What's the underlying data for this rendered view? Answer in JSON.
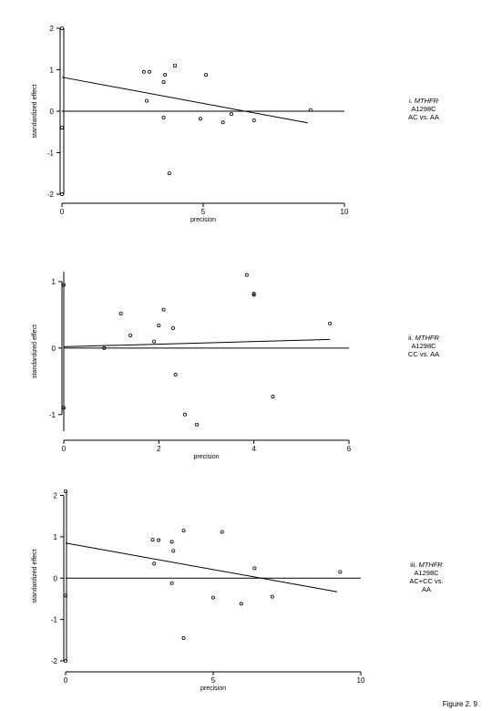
{
  "figure_label": "Figure 2. 9",
  "chart_data": [
    {
      "type": "scatter",
      "xlabel": "precision",
      "ylabel": "standardized effect",
      "xlim": [
        0,
        10
      ],
      "ylim": [
        -2,
        2
      ],
      "xticks": [
        "0",
        "5",
        "10"
      ],
      "yticks": [
        "2",
        "1",
        "0",
        "-1",
        "-2"
      ],
      "caption": [
        "i. MTHFR",
        "A1298C",
        "AC vs. AA"
      ],
      "points": [
        {
          "x": 0,
          "y": 2.0
        },
        {
          "x": 0,
          "y": -0.4
        },
        {
          "x": 0,
          "y": -2.0
        },
        {
          "x": 2.9,
          "y": 0.95
        },
        {
          "x": 3.1,
          "y": 0.95
        },
        {
          "x": 3.0,
          "y": 0.25
        },
        {
          "x": 3.6,
          "y": 0.7
        },
        {
          "x": 3.65,
          "y": 0.88
        },
        {
          "x": 3.6,
          "y": -0.15
        },
        {
          "x": 3.8,
          "y": -1.5
        },
        {
          "x": 4.0,
          "y": 1.1
        },
        {
          "x": 4.9,
          "y": -0.18
        },
        {
          "x": 5.1,
          "y": 0.88
        },
        {
          "x": 5.7,
          "y": -0.27
        },
        {
          "x": 6.0,
          "y": -0.07
        },
        {
          "x": 6.8,
          "y": -0.22
        },
        {
          "x": 8.8,
          "y": 0.03
        }
      ],
      "zero_line": {
        "x": [
          0,
          10
        ],
        "y": [
          0,
          0
        ]
      },
      "fit_line": {
        "x": [
          0,
          8.7
        ],
        "y": [
          0.82,
          -0.28
        ]
      }
    },
    {
      "type": "scatter",
      "xlabel": "precision",
      "ylabel": "standardized effect",
      "xlim": [
        0,
        6
      ],
      "ylim": [
        -1.25,
        1.15
      ],
      "xticks": [
        "0",
        "2",
        "4",
        "6"
      ],
      "yticks": [
        "1",
        "0",
        "-1"
      ],
      "caption": [
        "ii. MTHFR",
        "A1298C",
        "CC vs. AA"
      ],
      "points": [
        {
          "x": 0,
          "y": 0.95
        },
        {
          "x": 0,
          "y": -0.9
        },
        {
          "x": 0.85,
          "y": 0.0
        },
        {
          "x": 1.2,
          "y": 0.52
        },
        {
          "x": 1.4,
          "y": 0.19
        },
        {
          "x": 1.9,
          "y": 0.1
        },
        {
          "x": 2.0,
          "y": 0.34
        },
        {
          "x": 2.1,
          "y": 0.58
        },
        {
          "x": 2.3,
          "y": 0.3
        },
        {
          "x": 2.35,
          "y": -0.4
        },
        {
          "x": 2.55,
          "y": -1.0
        },
        {
          "x": 2.8,
          "y": -1.15
        },
        {
          "x": 3.85,
          "y": 1.1
        },
        {
          "x": 4.0,
          "y": 0.82
        },
        {
          "x": 4.0,
          "y": 0.8
        },
        {
          "x": 4.4,
          "y": -0.73
        },
        {
          "x": 5.6,
          "y": 0.37
        }
      ],
      "zero_line": {
        "x": [
          0,
          6
        ],
        "y": [
          0,
          0
        ]
      },
      "fit_line": {
        "x": [
          0,
          5.6
        ],
        "y": [
          0.02,
          0.13
        ]
      }
    },
    {
      "type": "scatter",
      "xlabel": "precision",
      "ylabel": "standardized effect",
      "xlim": [
        0,
        10
      ],
      "ylim": [
        -2,
        2.1
      ],
      "xticks": [
        "0",
        "5",
        "10"
      ],
      "yticks": [
        "2",
        "1",
        "0",
        "-1",
        "-2"
      ],
      "caption": [
        "iii. MTHFR",
        "A1298C",
        "AC+CC vs.",
        "AA"
      ],
      "points": [
        {
          "x": 0,
          "y": 2.1
        },
        {
          "x": 0,
          "y": -0.42
        },
        {
          "x": 0,
          "y": -2.0
        },
        {
          "x": 2.95,
          "y": 0.93
        },
        {
          "x": 3.0,
          "y": 0.35
        },
        {
          "x": 3.15,
          "y": 0.92
        },
        {
          "x": 3.6,
          "y": 0.88
        },
        {
          "x": 3.65,
          "y": 0.66
        },
        {
          "x": 3.6,
          "y": -0.12
        },
        {
          "x": 4.0,
          "y": 1.15
        },
        {
          "x": 4.0,
          "y": -1.45
        },
        {
          "x": 5.0,
          "y": -0.47
        },
        {
          "x": 5.3,
          "y": 1.12
        },
        {
          "x": 5.95,
          "y": -0.62
        },
        {
          "x": 6.4,
          "y": 0.24
        },
        {
          "x": 7.0,
          "y": -0.45
        },
        {
          "x": 9.3,
          "y": 0.15
        }
      ],
      "zero_line": {
        "x": [
          0,
          10
        ],
        "y": [
          0,
          0
        ]
      },
      "fit_line": {
        "x": [
          0,
          9.2
        ],
        "y": [
          0.85,
          -0.33
        ]
      }
    }
  ]
}
